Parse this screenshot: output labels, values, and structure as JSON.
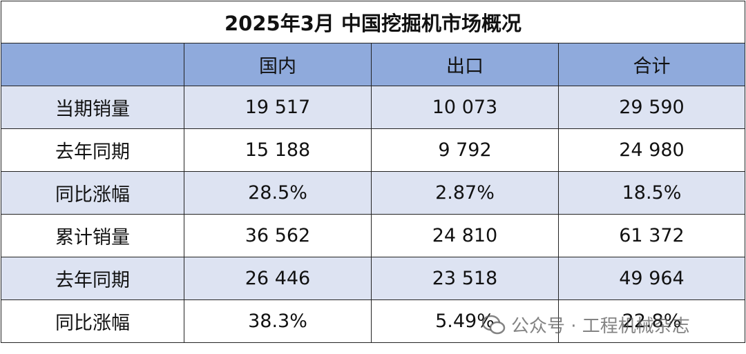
{
  "table": {
    "title": "2025年3月 中国挖掘机市场概况",
    "header": [
      "",
      "国内",
      "出口",
      "合计"
    ],
    "rows": [
      [
        "当期销量",
        "19 517",
        "10 073",
        "29 590"
      ],
      [
        "去年同期",
        "15 188",
        "9 792",
        "24 980"
      ],
      [
        "同比涨幅",
        "28.5%",
        "2.87%",
        "18.5%"
      ],
      [
        "累计销量",
        "36 562",
        "24 810",
        "61 372"
      ],
      [
        "去年同期",
        "26 446",
        "23 518",
        "49 964"
      ],
      [
        "同比涨幅",
        "38.3%",
        "5.49%",
        "22.8%"
      ]
    ]
  },
  "watermark": "公众号 · 工程机械杂志"
}
